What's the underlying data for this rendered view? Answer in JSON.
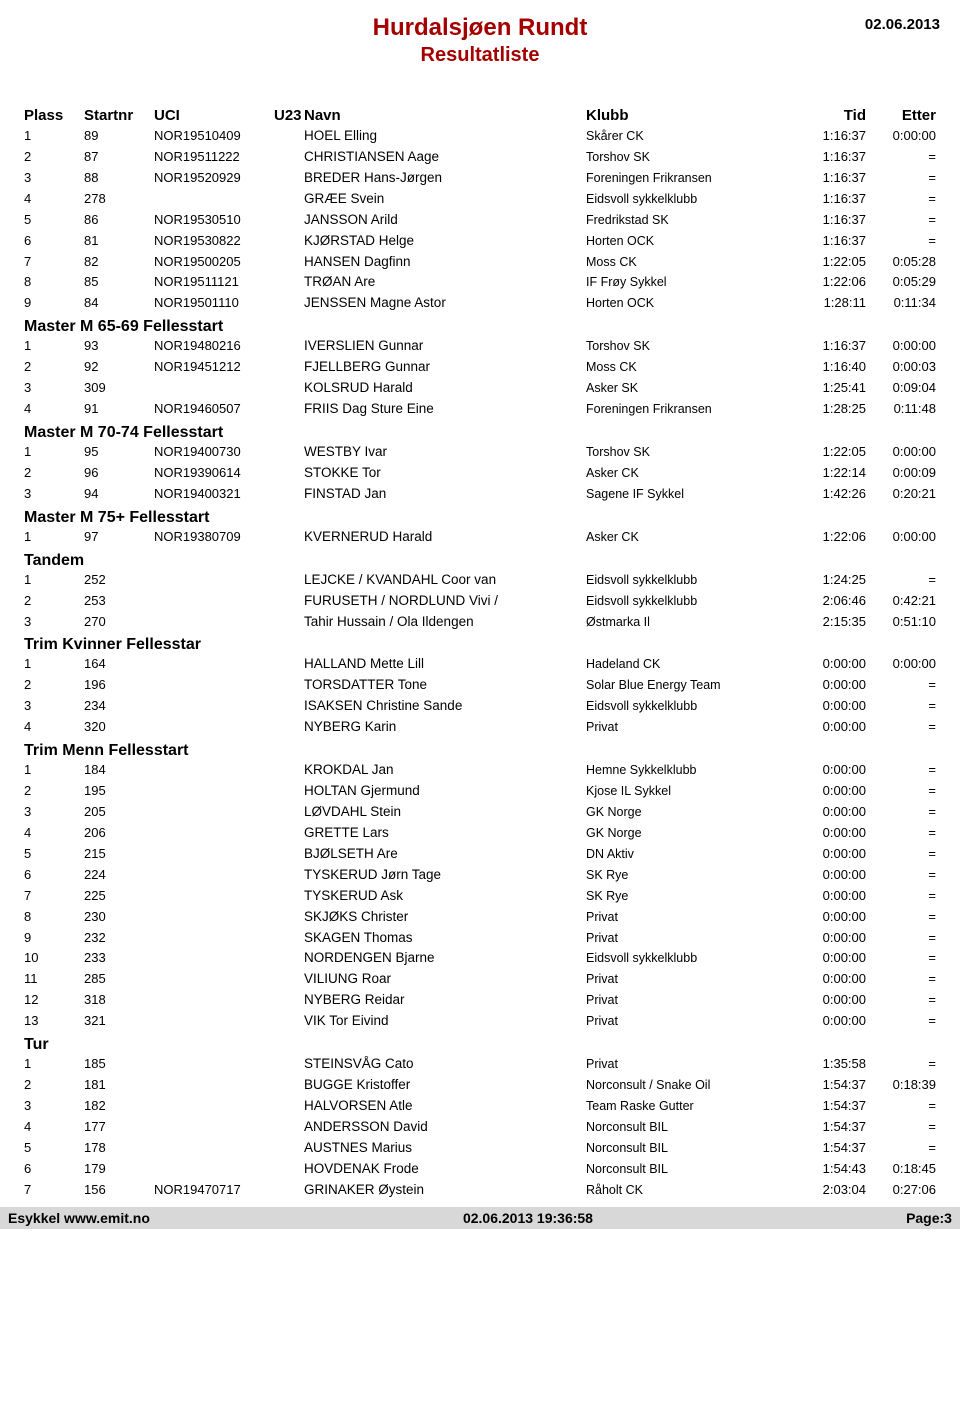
{
  "header": {
    "title": "Hurdalsjøen Rundt",
    "subtitle": "Resultatliste",
    "date": "02.06.2013"
  },
  "columns": {
    "plass": "Plass",
    "startnr": "Startnr",
    "uci": "UCI",
    "u23": "U23",
    "navn": "Navn",
    "klubb": "Klubb",
    "tid": "Tid",
    "etter": "Etter"
  },
  "groups": [
    {
      "title": "",
      "rows": [
        {
          "plass": "1",
          "startnr": "89",
          "uci": "NOR19510409",
          "navn": "HOEL Elling",
          "klubb": "Skårer CK",
          "tid": "1:16:37",
          "etter": "0:00:00"
        },
        {
          "plass": "2",
          "startnr": "87",
          "uci": "NOR19511222",
          "navn": "CHRISTIANSEN Aage",
          "klubb": "Torshov SK",
          "tid": "1:16:37",
          "etter": "="
        },
        {
          "plass": "3",
          "startnr": "88",
          "uci": "NOR19520929",
          "navn": "BREDER Hans-Jørgen",
          "klubb": "Foreningen Frikransen",
          "tid": "1:16:37",
          "etter": "="
        },
        {
          "plass": "4",
          "startnr": "278",
          "uci": "",
          "navn": "GRÆE Svein",
          "klubb": "Eidsvoll sykkelklubb",
          "tid": "1:16:37",
          "etter": "="
        },
        {
          "plass": "5",
          "startnr": "86",
          "uci": "NOR19530510",
          "navn": "JANSSON Arild",
          "klubb": "Fredrikstad SK",
          "tid": "1:16:37",
          "etter": "="
        },
        {
          "plass": "6",
          "startnr": "81",
          "uci": "NOR19530822",
          "navn": "KJØRSTAD Helge",
          "klubb": "Horten OCK",
          "tid": "1:16:37",
          "etter": "="
        },
        {
          "plass": "7",
          "startnr": "82",
          "uci": "NOR19500205",
          "navn": "HANSEN Dagfinn",
          "klubb": "Moss CK",
          "tid": "1:22:05",
          "etter": "0:05:28"
        },
        {
          "plass": "8",
          "startnr": "85",
          "uci": "NOR19511121",
          "navn": "TRØAN Are",
          "klubb": "IF Frøy Sykkel",
          "tid": "1:22:06",
          "etter": "0:05:29"
        },
        {
          "plass": "9",
          "startnr": "84",
          "uci": "NOR19501110",
          "navn": "JENSSEN Magne Astor",
          "klubb": "Horten OCK",
          "tid": "1:28:11",
          "etter": "0:11:34"
        }
      ]
    },
    {
      "title": "Master M 65-69 Fellesstart",
      "rows": [
        {
          "plass": "1",
          "startnr": "93",
          "uci": "NOR19480216",
          "navn": "IVERSLIEN Gunnar",
          "klubb": "Torshov SK",
          "tid": "1:16:37",
          "etter": "0:00:00"
        },
        {
          "plass": "2",
          "startnr": "92",
          "uci": "NOR19451212",
          "navn": "FJELLBERG Gunnar",
          "klubb": "Moss CK",
          "tid": "1:16:40",
          "etter": "0:00:03"
        },
        {
          "plass": "3",
          "startnr": "309",
          "uci": "",
          "navn": "KOLSRUD Harald",
          "klubb": "Asker SK",
          "tid": "1:25:41",
          "etter": "0:09:04"
        },
        {
          "plass": "4",
          "startnr": "91",
          "uci": "NOR19460507",
          "navn": "FRIIS Dag Sture Eine",
          "klubb": "Foreningen Frikransen",
          "tid": "1:28:25",
          "etter": "0:11:48"
        }
      ]
    },
    {
      "title": "Master M 70-74 Fellesstart",
      "rows": [
        {
          "plass": "1",
          "startnr": "95",
          "uci": "NOR19400730",
          "navn": "WESTBY Ivar",
          "klubb": "Torshov SK",
          "tid": "1:22:05",
          "etter": "0:00:00"
        },
        {
          "plass": "2",
          "startnr": "96",
          "uci": "NOR19390614",
          "navn": "STOKKE Tor",
          "klubb": "Asker CK",
          "tid": "1:22:14",
          "etter": "0:00:09"
        },
        {
          "plass": "3",
          "startnr": "94",
          "uci": "NOR19400321",
          "navn": "FINSTAD Jan",
          "klubb": "Sagene IF Sykkel",
          "tid": "1:42:26",
          "etter": "0:20:21"
        }
      ]
    },
    {
      "title": "Master M 75+ Fellesstart",
      "rows": [
        {
          "plass": "1",
          "startnr": "97",
          "uci": "NOR19380709",
          "navn": "KVERNERUD Harald",
          "klubb": "Asker CK",
          "tid": "1:22:06",
          "etter": "0:00:00"
        }
      ]
    },
    {
      "title": "Tandem",
      "rows": [
        {
          "plass": "1",
          "startnr": "252",
          "uci": "",
          "navn": "LEJCKE / KVANDAHL Coor van",
          "klubb": "Eidsvoll sykkelklubb",
          "tid": "1:24:25",
          "etter": "="
        },
        {
          "plass": "2",
          "startnr": "253",
          "uci": "",
          "navn": "FURUSETH / NORDLUND Vivi /",
          "klubb": "Eidsvoll sykkelklubb",
          "tid": "2:06:46",
          "etter": "0:42:21"
        },
        {
          "plass": "3",
          "startnr": "270",
          "uci": "",
          "navn": "Tahir Hussain / Ola Ildengen",
          "klubb": "Østmarka Il",
          "tid": "2:15:35",
          "etter": "0:51:10"
        }
      ]
    },
    {
      "title": "Trim Kvinner Fellesstar",
      "rows": [
        {
          "plass": "1",
          "startnr": "164",
          "uci": "",
          "navn": "HALLAND Mette Lill",
          "klubb": "Hadeland CK",
          "tid": "0:00:00",
          "etter": "0:00:00"
        },
        {
          "plass": "2",
          "startnr": "196",
          "uci": "",
          "navn": "TORSDATTER Tone",
          "klubb": "Solar Blue Energy Team",
          "tid": "0:00:00",
          "etter": "="
        },
        {
          "plass": "3",
          "startnr": "234",
          "uci": "",
          "navn": "ISAKSEN Christine Sande",
          "klubb": "Eidsvoll sykkelklubb",
          "tid": "0:00:00",
          "etter": "="
        },
        {
          "plass": "4",
          "startnr": "320",
          "uci": "",
          "navn": "NYBERG Karin",
          "klubb": "Privat",
          "tid": "0:00:00",
          "etter": "="
        }
      ]
    },
    {
      "title": "Trim Menn Fellesstart",
      "rows": [
        {
          "plass": "1",
          "startnr": "184",
          "uci": "",
          "navn": "KROKDAL Jan",
          "klubb": "Hemne Sykkelklubb",
          "tid": "0:00:00",
          "etter": "="
        },
        {
          "plass": "2",
          "startnr": "195",
          "uci": "",
          "navn": "HOLTAN Gjermund",
          "klubb": "Kjose IL Sykkel",
          "tid": "0:00:00",
          "etter": "="
        },
        {
          "plass": "3",
          "startnr": "205",
          "uci": "",
          "navn": "LØVDAHL Stein",
          "klubb": "GK Norge",
          "tid": "0:00:00",
          "etter": "="
        },
        {
          "plass": "4",
          "startnr": "206",
          "uci": "",
          "navn": "GRETTE Lars",
          "klubb": "GK Norge",
          "tid": "0:00:00",
          "etter": "="
        },
        {
          "plass": "5",
          "startnr": "215",
          "uci": "",
          "navn": "BJØLSETH Are",
          "klubb": "DN Aktiv",
          "tid": "0:00:00",
          "etter": "="
        },
        {
          "plass": "6",
          "startnr": "224",
          "uci": "",
          "navn": "TYSKERUD Jørn Tage",
          "klubb": "SK Rye",
          "tid": "0:00:00",
          "etter": "="
        },
        {
          "plass": "7",
          "startnr": "225",
          "uci": "",
          "navn": "TYSKERUD Ask",
          "klubb": "SK Rye",
          "tid": "0:00:00",
          "etter": "="
        },
        {
          "plass": "8",
          "startnr": "230",
          "uci": "",
          "navn": "SKJØKS Christer",
          "klubb": "Privat",
          "tid": "0:00:00",
          "etter": "="
        },
        {
          "plass": "9",
          "startnr": "232",
          "uci": "",
          "navn": "SKAGEN Thomas",
          "klubb": "Privat",
          "tid": "0:00:00",
          "etter": "="
        },
        {
          "plass": "10",
          "startnr": "233",
          "uci": "",
          "navn": "NORDENGEN Bjarne",
          "klubb": "Eidsvoll sykkelklubb",
          "tid": "0:00:00",
          "etter": "="
        },
        {
          "plass": "11",
          "startnr": "285",
          "uci": "",
          "navn": "VILIUNG Roar",
          "klubb": "Privat",
          "tid": "0:00:00",
          "etter": "="
        },
        {
          "plass": "12",
          "startnr": "318",
          "uci": "",
          "navn": "NYBERG Reidar",
          "klubb": "Privat",
          "tid": "0:00:00",
          "etter": "="
        },
        {
          "plass": "13",
          "startnr": "321",
          "uci": "",
          "navn": "VIK Tor Eivind",
          "klubb": "Privat",
          "tid": "0:00:00",
          "etter": "="
        }
      ]
    },
    {
      "title": "Tur",
      "rows": [
        {
          "plass": "1",
          "startnr": "185",
          "uci": "",
          "navn": "STEINSVÅG Cato",
          "klubb": "Privat",
          "tid": "1:35:58",
          "etter": "="
        },
        {
          "plass": "2",
          "startnr": "181",
          "uci": "",
          "navn": "BUGGE Kristoffer",
          "klubb": "Norconsult / Snake Oil",
          "tid": "1:54:37",
          "etter": "0:18:39"
        },
        {
          "plass": "3",
          "startnr": "182",
          "uci": "",
          "navn": "HALVORSEN Atle",
          "klubb": "Team Raske Gutter",
          "tid": "1:54:37",
          "etter": "="
        },
        {
          "plass": "4",
          "startnr": "177",
          "uci": "",
          "navn": "ANDERSSON David",
          "klubb": "Norconsult BIL",
          "tid": "1:54:37",
          "etter": "="
        },
        {
          "plass": "5",
          "startnr": "178",
          "uci": "",
          "navn": "AUSTNES Marius",
          "klubb": "Norconsult BIL",
          "tid": "1:54:37",
          "etter": "="
        },
        {
          "plass": "6",
          "startnr": "179",
          "uci": "",
          "navn": "HOVDENAK Frode",
          "klubb": "Norconsult BIL",
          "tid": "1:54:43",
          "etter": "0:18:45"
        },
        {
          "plass": "7",
          "startnr": "156",
          "uci": "NOR19470717",
          "navn": "GRINAKER Øystein",
          "klubb": "Råholt CK",
          "tid": "2:03:04",
          "etter": "0:27:06"
        }
      ]
    }
  ],
  "footer": {
    "left": "Esykkel www.emit.no",
    "center": "02.06.2013 19:36:58",
    "right": "Page:3"
  }
}
